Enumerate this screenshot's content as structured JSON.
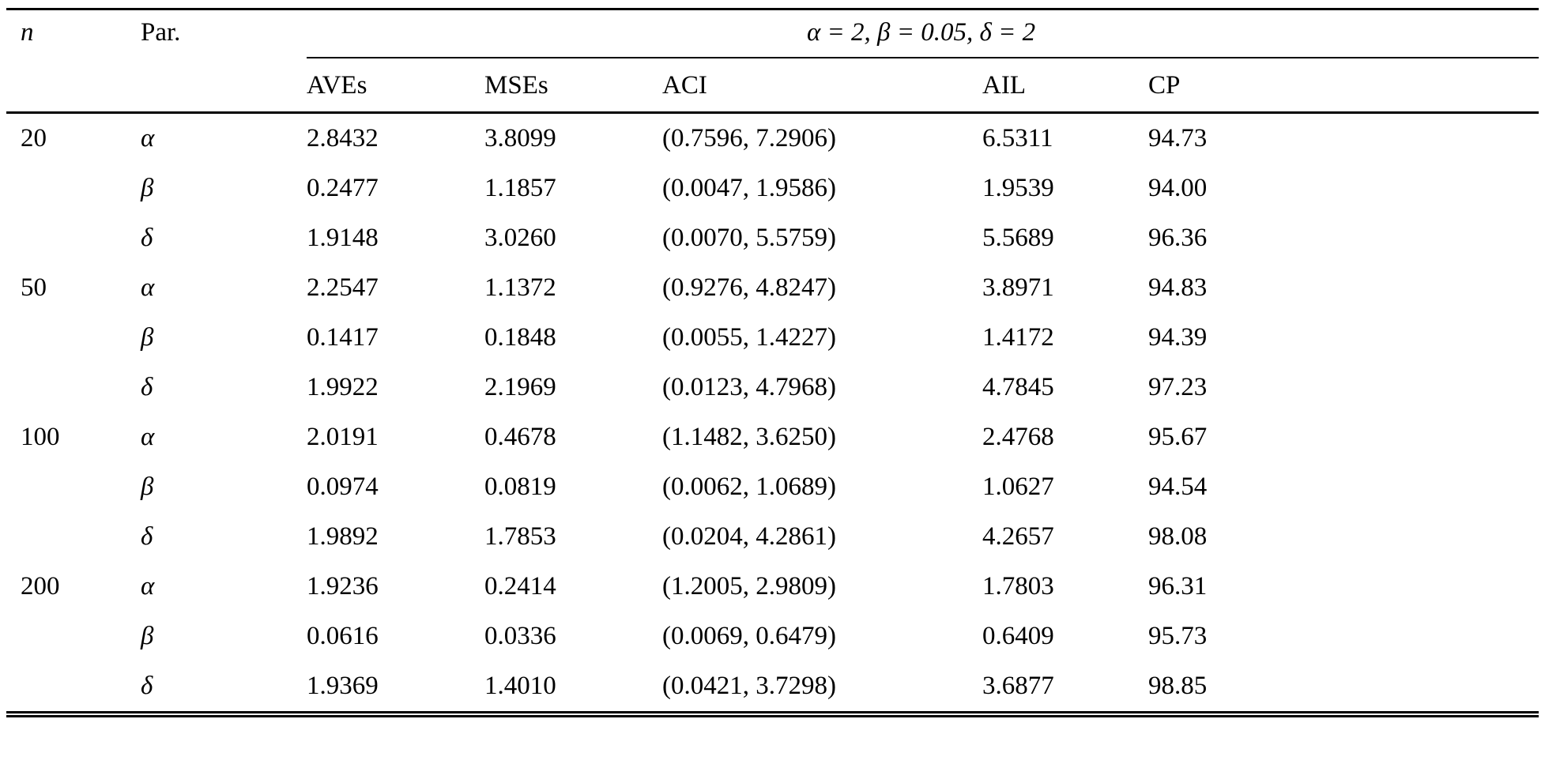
{
  "table": {
    "header": {
      "n_label": "n",
      "par_label": "Par.",
      "span_label": "α = 2, β = 0.05, δ = 2",
      "columns": [
        "AVEs",
        "MSEs",
        "ACI",
        "AIL",
        "CP"
      ]
    },
    "rows": [
      {
        "n": "20",
        "par": "α",
        "aves": "2.8432",
        "mses": "3.8099",
        "aci": "(0.7596, 7.2906)",
        "ail": "6.5311",
        "cp": "94.73"
      },
      {
        "n": "",
        "par": "β",
        "aves": "0.2477",
        "mses": "1.1857",
        "aci": "(0.0047, 1.9586)",
        "ail": "1.9539",
        "cp": "94.00"
      },
      {
        "n": "",
        "par": "δ",
        "aves": "1.9148",
        "mses": "3.0260",
        "aci": "(0.0070, 5.5759)",
        "ail": "5.5689",
        "cp": "96.36"
      },
      {
        "n": "50",
        "par": "α",
        "aves": "2.2547",
        "mses": "1.1372",
        "aci": "(0.9276, 4.8247)",
        "ail": "3.8971",
        "cp": "94.83"
      },
      {
        "n": "",
        "par": "β",
        "aves": "0.1417",
        "mses": "0.1848",
        "aci": "(0.0055, 1.4227)",
        "ail": "1.4172",
        "cp": "94.39"
      },
      {
        "n": "",
        "par": "δ",
        "aves": "1.9922",
        "mses": "2.1969",
        "aci": "(0.0123, 4.7968)",
        "ail": "4.7845",
        "cp": "97.23"
      },
      {
        "n": "100",
        "par": "α",
        "aves": "2.0191",
        "mses": "0.4678",
        "aci": "(1.1482, 3.6250)",
        "ail": "2.4768",
        "cp": "95.67"
      },
      {
        "n": "",
        "par": "β",
        "aves": "0.0974",
        "mses": "0.0819",
        "aci": "(0.0062, 1.0689)",
        "ail": "1.0627",
        "cp": "94.54"
      },
      {
        "n": "",
        "par": "δ",
        "aves": "1.9892",
        "mses": "1.7853",
        "aci": "(0.0204, 4.2861)",
        "ail": "4.2657",
        "cp": "98.08"
      },
      {
        "n": "200",
        "par": "α",
        "aves": "1.9236",
        "mses": "0.2414",
        "aci": "(1.2005, 2.9809)",
        "ail": "1.7803",
        "cp": "96.31"
      },
      {
        "n": "",
        "par": "β",
        "aves": "0.0616",
        "mses": "0.0336",
        "aci": "(0.0069, 0.6479)",
        "ail": "0.6409",
        "cp": "95.73"
      },
      {
        "n": "",
        "par": "δ",
        "aves": "1.9369",
        "mses": "1.4010",
        "aci": "(0.0421, 3.7298)",
        "ail": "3.6877",
        "cp": "98.85"
      }
    ]
  }
}
